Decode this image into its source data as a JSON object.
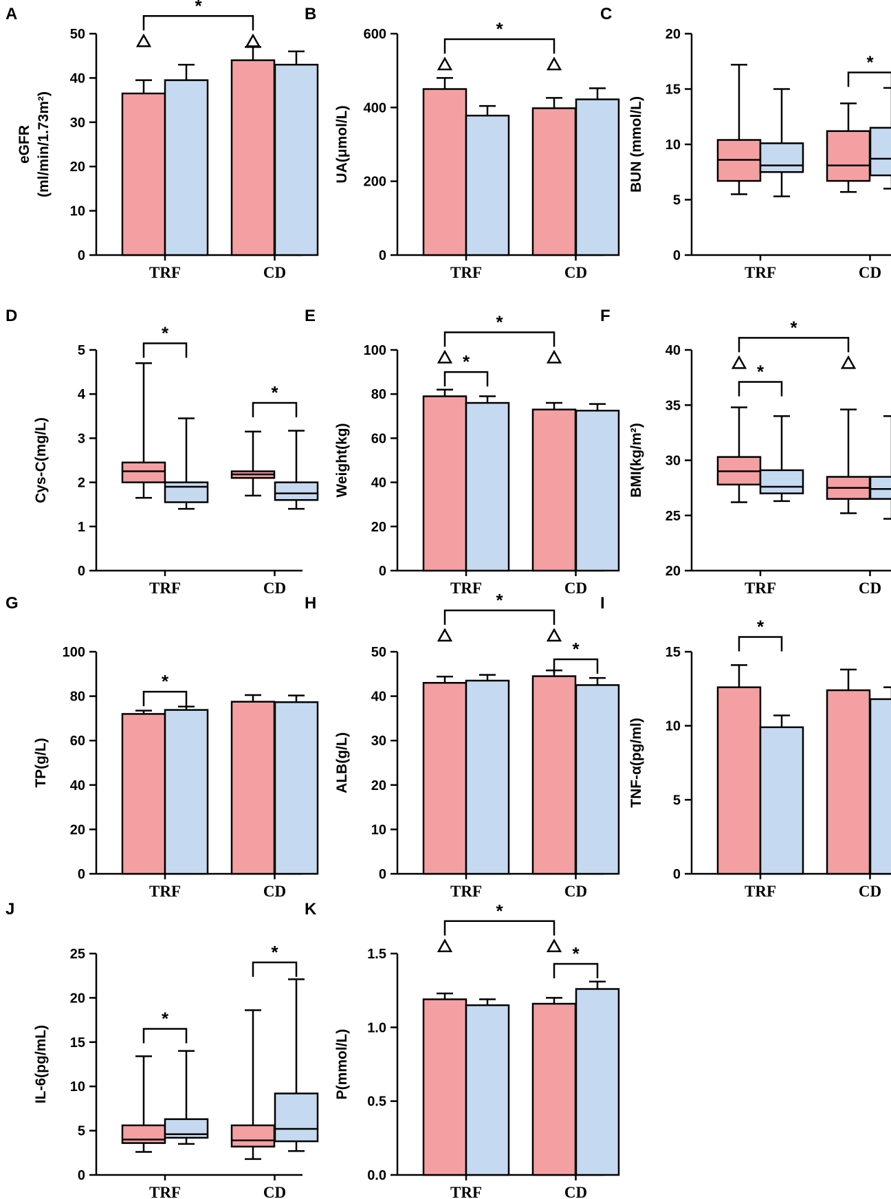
{
  "colors": {
    "group1": "#F4A0A3",
    "group2": "#C5DAF0",
    "stroke": "#000000"
  },
  "chart_data": [
    {
      "panel": "A",
      "type": "bar",
      "ylabel": "eGFR",
      "ylabel2": "(ml/min/1.73m²)",
      "ylim": [
        0,
        50
      ],
      "yticks": [
        0,
        10,
        20,
        30,
        40,
        50
      ],
      "categories": [
        "TRF",
        "CD"
      ],
      "series": [
        {
          "name": "group1",
          "values": [
            36.5,
            44
          ],
          "errors": [
            3,
            3
          ]
        },
        {
          "name": "group2",
          "values": [
            39.5,
            43
          ],
          "errors": [
            3.5,
            3
          ]
        }
      ],
      "annotations": {
        "star_text": "*",
        "tri_text": "△",
        "brackets": [
          {
            "from": [
              0,
              0
            ],
            "to": [
              1,
              0
            ],
            "level": 54,
            "triangles": true,
            "label": "*"
          }
        ]
      }
    },
    {
      "panel": "B",
      "type": "bar",
      "ylabel": "UA(μmol/L)",
      "ylim": [
        0,
        600
      ],
      "yticks": [
        0,
        200,
        400,
        600
      ],
      "categories": [
        "TRF",
        "CD"
      ],
      "series": [
        {
          "name": "group1",
          "values": [
            450,
            398
          ],
          "errors": [
            30,
            28
          ]
        },
        {
          "name": "group2",
          "values": [
            378,
            422
          ],
          "errors": [
            26,
            30
          ]
        }
      ],
      "annotations": {
        "star_text": "*",
        "tri_text": "△",
        "brackets": [
          {
            "from": [
              0,
              0
            ],
            "to": [
              1,
              0
            ],
            "level": 585,
            "triangles": true,
            "label": "*"
          }
        ]
      }
    },
    {
      "panel": "C",
      "type": "box",
      "ylabel": "BUN (mmol/L)",
      "ylim": [
        0,
        20
      ],
      "yticks": [
        0,
        5,
        10,
        15,
        20
      ],
      "categories": [
        "TRF",
        "CD"
      ],
      "series": [
        {
          "name": "group1",
          "boxes": [
            [
              5.5,
              6.7,
              8.6,
              10.4,
              17.2
            ],
            [
              5.7,
              6.7,
              8.1,
              11.2,
              13.7
            ]
          ]
        },
        {
          "name": "group2",
          "boxes": [
            [
              5.3,
              7.5,
              8.1,
              10.1,
              15.0
            ],
            [
              6.0,
              7.2,
              8.7,
              11.5,
              15.1
            ]
          ]
        }
      ],
      "annotations": {
        "star_text": "*",
        "brackets": [
          {
            "from": [
              1,
              0
            ],
            "to": [
              1,
              1
            ],
            "level": 16.5,
            "label": "*"
          }
        ]
      }
    },
    {
      "panel": "D",
      "type": "box",
      "ylabel": "Cys-C(mg/L)",
      "ylim": [
        0,
        5
      ],
      "yticks": [
        0,
        1,
        2,
        3,
        4,
        5
      ],
      "categories": [
        "TRF",
        "CD"
      ],
      "series": [
        {
          "name": "group1",
          "boxes": [
            [
              1.65,
              2.0,
              2.25,
              2.45,
              4.7
            ],
            [
              1.7,
              2.1,
              2.18,
              2.25,
              3.15
            ]
          ]
        },
        {
          "name": "group2",
          "boxes": [
            [
              1.4,
              1.55,
              1.9,
              2.0,
              3.45
            ],
            [
              1.4,
              1.6,
              1.75,
              2.0,
              3.17
            ]
          ]
        }
      ],
      "annotations": {
        "star_text": "*",
        "brackets": [
          {
            "from": [
              0,
              0
            ],
            "to": [
              0,
              1
            ],
            "level": 5.15,
            "label": "*"
          },
          {
            "from": [
              1,
              0
            ],
            "to": [
              1,
              1
            ],
            "level": 3.8,
            "label": "*"
          }
        ]
      }
    },
    {
      "panel": "E",
      "type": "bar",
      "ylabel": "Weight(kg)",
      "ylim": [
        0,
        100
      ],
      "yticks": [
        0,
        20,
        40,
        60,
        80,
        100
      ],
      "categories": [
        "TRF",
        "CD"
      ],
      "series": [
        {
          "name": "group1",
          "values": [
            79,
            73
          ],
          "errors": [
            3,
            3
          ]
        },
        {
          "name": "group2",
          "values": [
            76,
            72.5
          ],
          "errors": [
            3,
            3
          ]
        }
      ],
      "annotations": {
        "star_text": "*",
        "tri_text": "△",
        "brackets": [
          {
            "from": [
              0,
              0
            ],
            "to": [
              1,
              0
            ],
            "level": 108,
            "triangles": true,
            "label": "*"
          },
          {
            "from": [
              0,
              0
            ],
            "to": [
              0,
              1
            ],
            "level": 90,
            "label": "*"
          }
        ]
      }
    },
    {
      "panel": "F",
      "type": "box",
      "ylabel": "BMI(kg/m²)",
      "ylim": [
        20,
        40
      ],
      "yticks": [
        20,
        25,
        30,
        35,
        40
      ],
      "categories": [
        "TRF",
        "CD"
      ],
      "series": [
        {
          "name": "group1",
          "boxes": [
            [
              26.2,
              27.8,
              29.0,
              30.3,
              34.8
            ],
            [
              25.2,
              26.5,
              27.5,
              28.5,
              34.6
            ]
          ]
        },
        {
          "name": "group2",
          "boxes": [
            [
              26.3,
              27.0,
              27.6,
              29.1,
              34.0
            ],
            [
              24.7,
              26.5,
              27.4,
              28.5,
              34.0
            ]
          ]
        }
      ],
      "annotations": {
        "star_text": "*",
        "tri_text": "△",
        "brackets": [
          {
            "from": [
              0,
              0
            ],
            "to": [
              1,
              0
            ],
            "level": 41.1,
            "triangles": true,
            "label": "*"
          },
          {
            "from": [
              0,
              0
            ],
            "to": [
              0,
              1
            ],
            "level": 37.1,
            "label": "*"
          }
        ]
      }
    },
    {
      "panel": "G",
      "type": "bar",
      "ylabel": "TP(g/L)",
      "ylim": [
        0,
        100
      ],
      "yticks": [
        0,
        20,
        40,
        60,
        80,
        100
      ],
      "categories": [
        "TRF",
        "CD"
      ],
      "series": [
        {
          "name": "group1",
          "values": [
            72,
            77.5
          ],
          "errors": [
            1.5,
            3
          ]
        },
        {
          "name": "group2",
          "values": [
            73.8,
            77.3
          ],
          "errors": [
            1.5,
            3
          ]
        }
      ],
      "annotations": {
        "star_text": "*",
        "brackets": [
          {
            "from": [
              0,
              0
            ],
            "to": [
              0,
              1
            ],
            "level": 82,
            "label": "*"
          }
        ]
      }
    },
    {
      "panel": "H",
      "type": "bar",
      "ylabel": "ALB(g/L)",
      "ylim": [
        0,
        50
      ],
      "yticks": [
        0,
        10,
        20,
        30,
        40,
        50
      ],
      "categories": [
        "TRF",
        "CD"
      ],
      "series": [
        {
          "name": "group1",
          "values": [
            43,
            44.5
          ],
          "errors": [
            1.4,
            1.3
          ]
        },
        {
          "name": "group2",
          "values": [
            43.5,
            42.5
          ],
          "errors": [
            1.3,
            1.6
          ]
        }
      ],
      "annotations": {
        "star_text": "*",
        "tri_text": "△",
        "brackets": [
          {
            "from": [
              0,
              0
            ],
            "to": [
              1,
              0
            ],
            "level": 59.3,
            "triangles": true,
            "label": "*"
          },
          {
            "from": [
              1,
              0
            ],
            "to": [
              1,
              1
            ],
            "level": 48.3,
            "label": "*"
          }
        ]
      }
    },
    {
      "panel": "I",
      "type": "bar",
      "ylabel": "TNF-α(pg/ml)",
      "ylim": [
        0,
        15
      ],
      "yticks": [
        0,
        5,
        10,
        15
      ],
      "categories": [
        "TRF",
        "CD"
      ],
      "series": [
        {
          "name": "group1",
          "values": [
            12.6,
            12.4
          ],
          "errors": [
            1.5,
            1.4
          ]
        },
        {
          "name": "group2",
          "values": [
            9.9,
            11.8
          ],
          "errors": [
            0.8,
            0.8
          ]
        }
      ],
      "annotations": {
        "star_text": "*",
        "brackets": [
          {
            "from": [
              0,
              0
            ],
            "to": [
              0,
              1
            ],
            "level": 16.0,
            "label": "*"
          }
        ]
      }
    },
    {
      "panel": "J",
      "type": "box",
      "ylabel": "IL-6(pg/mL)",
      "ylim": [
        0,
        25
      ],
      "yticks": [
        0,
        5,
        10,
        15,
        20,
        25
      ],
      "categories": [
        "TRF",
        "CD"
      ],
      "series": [
        {
          "name": "group1",
          "boxes": [
            [
              2.6,
              3.6,
              4.0,
              5.6,
              13.4
            ],
            [
              1.8,
              3.2,
              3.9,
              5.6,
              18.6
            ]
          ]
        },
        {
          "name": "group2",
          "boxes": [
            [
              3.5,
              4.2,
              4.6,
              6.3,
              14.0
            ],
            [
              2.7,
              3.8,
              5.2,
              9.2,
              22.1
            ]
          ]
        }
      ],
      "annotations": {
        "star_text": "*",
        "brackets": [
          {
            "from": [
              0,
              0
            ],
            "to": [
              0,
              1
            ],
            "level": 16.5,
            "label": "*"
          },
          {
            "from": [
              1,
              0
            ],
            "to": [
              1,
              1
            ],
            "level": 24.0,
            "label": "*"
          }
        ]
      }
    },
    {
      "panel": "K",
      "type": "bar",
      "ylabel": "P(mmol/L)",
      "ylim": [
        0,
        1.5
      ],
      "yticks": [
        0.0,
        0.5,
        1.0,
        1.5
      ],
      "ytick_labels": [
        "0.0",
        "0.5",
        "1.0",
        "1.5"
      ],
      "categories": [
        "TRF",
        "CD"
      ],
      "series": [
        {
          "name": "group1",
          "values": [
            1.19,
            1.16
          ],
          "errors": [
            0.04,
            0.04
          ]
        },
        {
          "name": "group2",
          "values": [
            1.15,
            1.26
          ],
          "errors": [
            0.04,
            0.05
          ]
        }
      ],
      "annotations": {
        "star_text": "*",
        "tri_text": "△",
        "brackets": [
          {
            "from": [
              0,
              0
            ],
            "to": [
              1,
              0
            ],
            "level": 1.72,
            "triangles": true,
            "label": "*"
          },
          {
            "from": [
              1,
              0
            ],
            "to": [
              1,
              1
            ],
            "level": 1.43,
            "label": "*"
          }
        ]
      }
    }
  ]
}
